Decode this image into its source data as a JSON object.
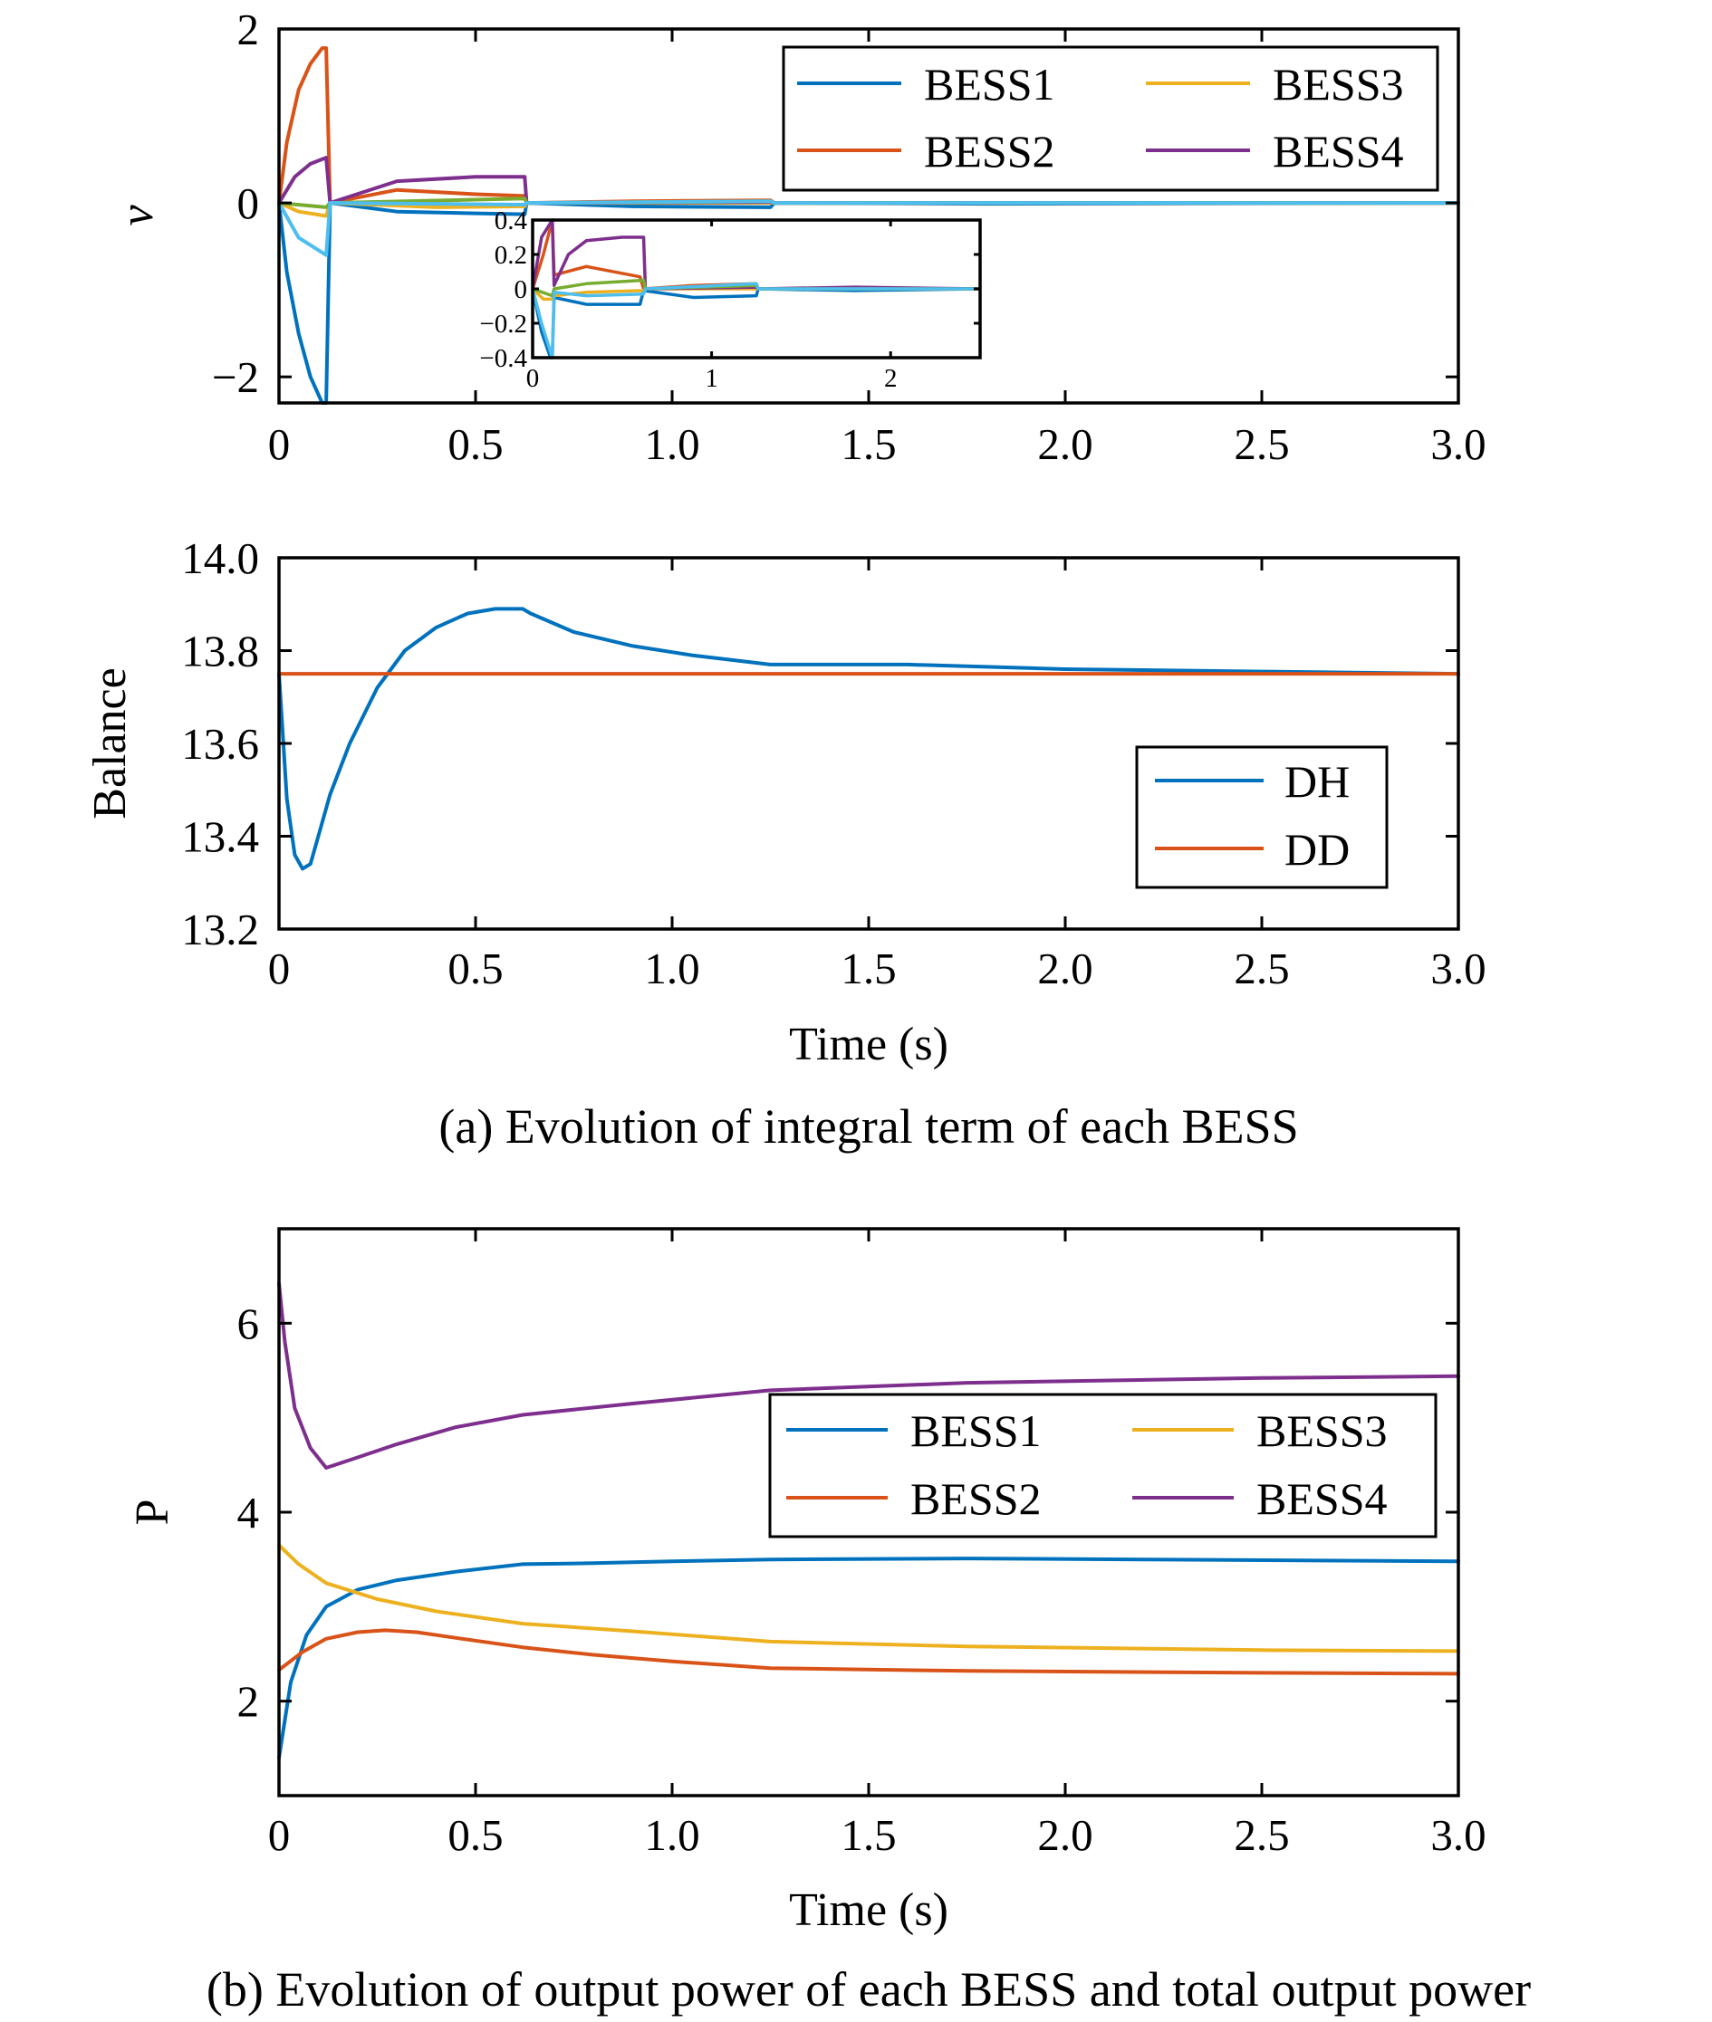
{
  "colors": {
    "BESS1": "#0072BD",
    "BESS2": "#D95319",
    "BESS3": "#EDB120",
    "BESS4": "#7E2F8E",
    "extra_green": "#77AC30",
    "extra_lightblue": "#4DBEEE",
    "DH": "#0072BD",
    "DD": "#D95319"
  },
  "captions": {
    "a": "(a) Evolution of integral term of each BESS",
    "b": "(b) Evolution of output power of each BESS and total output power"
  },
  "chart_data": [
    {
      "id": "v-plot",
      "type": "line",
      "ylabel": "v",
      "xlabel": "",
      "xlim": [
        0,
        3.0
      ],
      "ylim": [
        -2.3,
        2
      ],
      "xticks": [
        0,
        0.5,
        1.0,
        1.5,
        2.0,
        2.5,
        3.0
      ],
      "xtick_labels": [
        "0",
        "0.5",
        "1.0",
        "1.5",
        "2.0",
        "2.5",
        "3.0"
      ],
      "yticks": [
        -2,
        0,
        2
      ],
      "ytick_labels": [
        "−2",
        "0",
        "2"
      ],
      "legend": {
        "placement": "top-right",
        "columns": 2,
        "entries": [
          "BESS1",
          "BESS2",
          "BESS3",
          "BESS4"
        ]
      },
      "series": [
        {
          "name": "BESS1",
          "color": "#0072BD",
          "x": [
            0,
            0.02,
            0.05,
            0.08,
            0.11,
            0.12,
            0.13,
            0.3,
            0.5,
            0.625,
            0.63,
            0.9,
            1.25,
            1.26,
            1.8,
            3.0
          ],
          "y": [
            0,
            -0.8,
            -1.5,
            -2.0,
            -2.3,
            -2.3,
            0,
            -0.1,
            -0.12,
            -0.13,
            0,
            -0.04,
            -0.05,
            0,
            -0.01,
            0
          ]
        },
        {
          "name": "BESS2",
          "color": "#D95319",
          "x": [
            0,
            0.02,
            0.05,
            0.08,
            0.11,
            0.12,
            0.13,
            0.3,
            0.5,
            0.625,
            0.63,
            0.9,
            1.25,
            1.26,
            3.0
          ],
          "y": [
            0,
            0.7,
            1.3,
            1.6,
            1.78,
            1.78,
            0,
            0.15,
            0.1,
            0.08,
            0,
            0.02,
            0.03,
            0,
            0
          ]
        },
        {
          "name": "BESS3",
          "color": "#EDB120",
          "x": [
            0,
            0.05,
            0.12,
            0.13,
            0.4,
            0.625,
            0.63,
            3.0
          ],
          "y": [
            0,
            -0.1,
            -0.15,
            0,
            -0.05,
            -0.04,
            0,
            0
          ]
        },
        {
          "name": "BESS4",
          "color": "#7E2F8E",
          "x": [
            0,
            0.04,
            0.08,
            0.12,
            0.13,
            0.3,
            0.5,
            0.625,
            0.63,
            1.25,
            1.26,
            3.0
          ],
          "y": [
            0,
            0.3,
            0.45,
            0.52,
            0,
            0.25,
            0.3,
            0.3,
            0,
            0.01,
            0,
            0
          ]
        },
        {
          "name": "",
          "color": "#77AC30",
          "x": [
            0,
            0.12,
            0.13,
            0.625,
            0.63,
            1.25,
            1.26,
            3.0
          ],
          "y": [
            0,
            -0.05,
            0,
            0.05,
            0,
            0.02,
            0,
            0
          ]
        },
        {
          "name": "",
          "color": "#4DBEEE",
          "x": [
            0,
            0.05,
            0.12,
            0.13,
            0.625,
            0.63,
            1.25,
            1.26,
            3.0
          ],
          "y": [
            0,
            -0.4,
            -0.6,
            0,
            -0.02,
            0,
            0.02,
            0,
            0
          ]
        }
      ],
      "inset": {
        "xlim": [
          0,
          2.5
        ],
        "ylim": [
          -0.4,
          0.4
        ],
        "xticks": [
          0,
          1,
          2
        ],
        "xtick_labels": [
          "0",
          "1",
          "2"
        ],
        "yticks": [
          0.4,
          0.2,
          0,
          -0.2,
          -0.4
        ],
        "ytick_labels": [
          "0.4",
          "0.2",
          "0",
          "−0.2",
          "−0.4"
        ],
        "series": [
          {
            "color": "#0072BD",
            "x": [
              0,
              0.05,
              0.1,
              0.11,
              0.12,
              0.3,
              0.6,
              0.62,
              0.9,
              1.25,
              1.26,
              1.8,
              2.5
            ],
            "y": [
              0,
              -0.25,
              -0.4,
              -0.4,
              -0.05,
              -0.09,
              -0.09,
              -0.01,
              -0.05,
              -0.04,
              0,
              -0.01,
              0
            ]
          },
          {
            "color": "#D95319",
            "x": [
              0,
              0.06,
              0.11,
              0.12,
              0.3,
              0.6,
              0.62,
              0.9,
              1.25,
              1.26,
              2.5
            ],
            "y": [
              0,
              0.2,
              0.4,
              0.08,
              0.13,
              0.07,
              0,
              0.02,
              0.03,
              0,
              0
            ]
          },
          {
            "color": "#EDB120",
            "x": [
              0,
              0.06,
              0.11,
              0.12,
              0.3,
              0.62,
              0.63,
              2.5
            ],
            "y": [
              0,
              -0.06,
              -0.06,
              -0.04,
              -0.02,
              -0.01,
              0,
              0
            ]
          },
          {
            "color": "#7E2F8E",
            "x": [
              0,
              0.05,
              0.11,
              0.12,
              0.2,
              0.3,
              0.5,
              0.62,
              0.63,
              1.25,
              1.26,
              1.8,
              2.5
            ],
            "y": [
              0,
              0.3,
              0.4,
              0.02,
              0.2,
              0.28,
              0.3,
              0.3,
              0,
              0.01,
              0,
              0.01,
              0
            ]
          },
          {
            "color": "#77AC30",
            "x": [
              0,
              0.11,
              0.12,
              0.3,
              0.62,
              0.63,
              1.25,
              1.26,
              2.5
            ],
            "y": [
              0,
              -0.04,
              0,
              0.03,
              0.05,
              0,
              0.02,
              0,
              0
            ]
          },
          {
            "color": "#4DBEEE",
            "x": [
              0,
              0.05,
              0.11,
              0.12,
              0.3,
              0.62,
              0.63,
              1.25,
              1.26,
              2.5
            ],
            "y": [
              0,
              -0.2,
              -0.4,
              -0.02,
              -0.04,
              -0.03,
              0,
              0.03,
              0,
              0
            ]
          }
        ]
      }
    },
    {
      "id": "balance-plot",
      "type": "line",
      "ylabel": "Balance",
      "xlabel": "Time (s)",
      "xlim": [
        0,
        3.0
      ],
      "ylim": [
        13.2,
        14.0
      ],
      "xticks": [
        0,
        0.5,
        1.0,
        1.5,
        2.0,
        2.5,
        3.0
      ],
      "xtick_labels": [
        "0",
        "0.5",
        "1.0",
        "1.5",
        "2.0",
        "2.5",
        "3.0"
      ],
      "yticks": [
        13.2,
        13.4,
        13.6,
        13.8,
        14.0
      ],
      "ytick_labels": [
        "13.2",
        "13.4",
        "13.6",
        "13.8",
        "14.0"
      ],
      "legend": {
        "placement": "lower-right",
        "columns": 1,
        "entries": [
          "DH",
          "DD"
        ]
      },
      "series": [
        {
          "name": "DH",
          "color": "#0072BD",
          "x": [
            0,
            0.02,
            0.04,
            0.06,
            0.08,
            0.1,
            0.13,
            0.18,
            0.25,
            0.32,
            0.4,
            0.48,
            0.55,
            0.62,
            0.64,
            0.75,
            0.9,
            1.05,
            1.25,
            1.4,
            1.6,
            2.0,
            2.5,
            3.0
          ],
          "y": [
            13.75,
            13.48,
            13.36,
            13.33,
            13.34,
            13.4,
            13.49,
            13.6,
            13.72,
            13.8,
            13.85,
            13.88,
            13.89,
            13.89,
            13.88,
            13.84,
            13.81,
            13.79,
            13.77,
            13.77,
            13.77,
            13.76,
            13.755,
            13.75
          ]
        },
        {
          "name": "DD",
          "color": "#D95319",
          "x": [
            0,
            3.0
          ],
          "y": [
            13.75,
            13.75
          ]
        }
      ]
    },
    {
      "id": "power-plot",
      "type": "line",
      "ylabel": "P",
      "xlabel": "Time (s)",
      "xlim": [
        0,
        3.0
      ],
      "ylim": [
        1.0,
        7.0
      ],
      "xticks": [
        0,
        0.5,
        1.0,
        1.5,
        2.0,
        2.5,
        3.0
      ],
      "xtick_labels": [
        "0",
        "0.5",
        "1.0",
        "1.5",
        "2.0",
        "2.5",
        "3.0"
      ],
      "yticks": [
        2,
        4,
        6
      ],
      "ytick_labels": [
        "2",
        "4",
        "6"
      ],
      "legend": {
        "placement": "center-right",
        "columns": 2,
        "entries": [
          "BESS1",
          "BESS2",
          "BESS3",
          "BESS4"
        ]
      },
      "series": [
        {
          "name": "BESS1",
          "color": "#0072BD",
          "x": [
            0,
            0.03,
            0.07,
            0.12,
            0.2,
            0.3,
            0.45,
            0.62,
            0.8,
            1.0,
            1.25,
            1.75,
            2.2,
            2.6,
            3.0
          ],
          "y": [
            1.4,
            2.2,
            2.7,
            3.0,
            3.18,
            3.28,
            3.37,
            3.45,
            3.46,
            3.48,
            3.5,
            3.51,
            3.5,
            3.49,
            3.48
          ]
        },
        {
          "name": "BESS2",
          "color": "#D95319",
          "x": [
            0,
            0.06,
            0.12,
            0.2,
            0.27,
            0.35,
            0.45,
            0.62,
            0.8,
            1.0,
            1.25,
            1.75,
            2.5,
            3.0
          ],
          "y": [
            2.33,
            2.52,
            2.66,
            2.73,
            2.75,
            2.73,
            2.67,
            2.57,
            2.49,
            2.42,
            2.35,
            2.32,
            2.3,
            2.29
          ]
        },
        {
          "name": "BESS3",
          "color": "#EDB120",
          "x": [
            0,
            0.05,
            0.12,
            0.25,
            0.4,
            0.62,
            0.9,
            1.25,
            1.75,
            2.5,
            3.0
          ],
          "y": [
            3.65,
            3.45,
            3.25,
            3.08,
            2.95,
            2.82,
            2.74,
            2.63,
            2.58,
            2.54,
            2.53
          ]
        },
        {
          "name": "BESS4",
          "color": "#7E2F8E",
          "x": [
            0,
            0.015,
            0.04,
            0.08,
            0.12,
            0.2,
            0.3,
            0.45,
            0.62,
            0.9,
            1.25,
            1.75,
            2.5,
            3.0
          ],
          "y": [
            6.42,
            5.8,
            5.1,
            4.68,
            4.47,
            4.58,
            4.72,
            4.9,
            5.03,
            5.15,
            5.29,
            5.37,
            5.42,
            5.44
          ]
        }
      ]
    }
  ]
}
